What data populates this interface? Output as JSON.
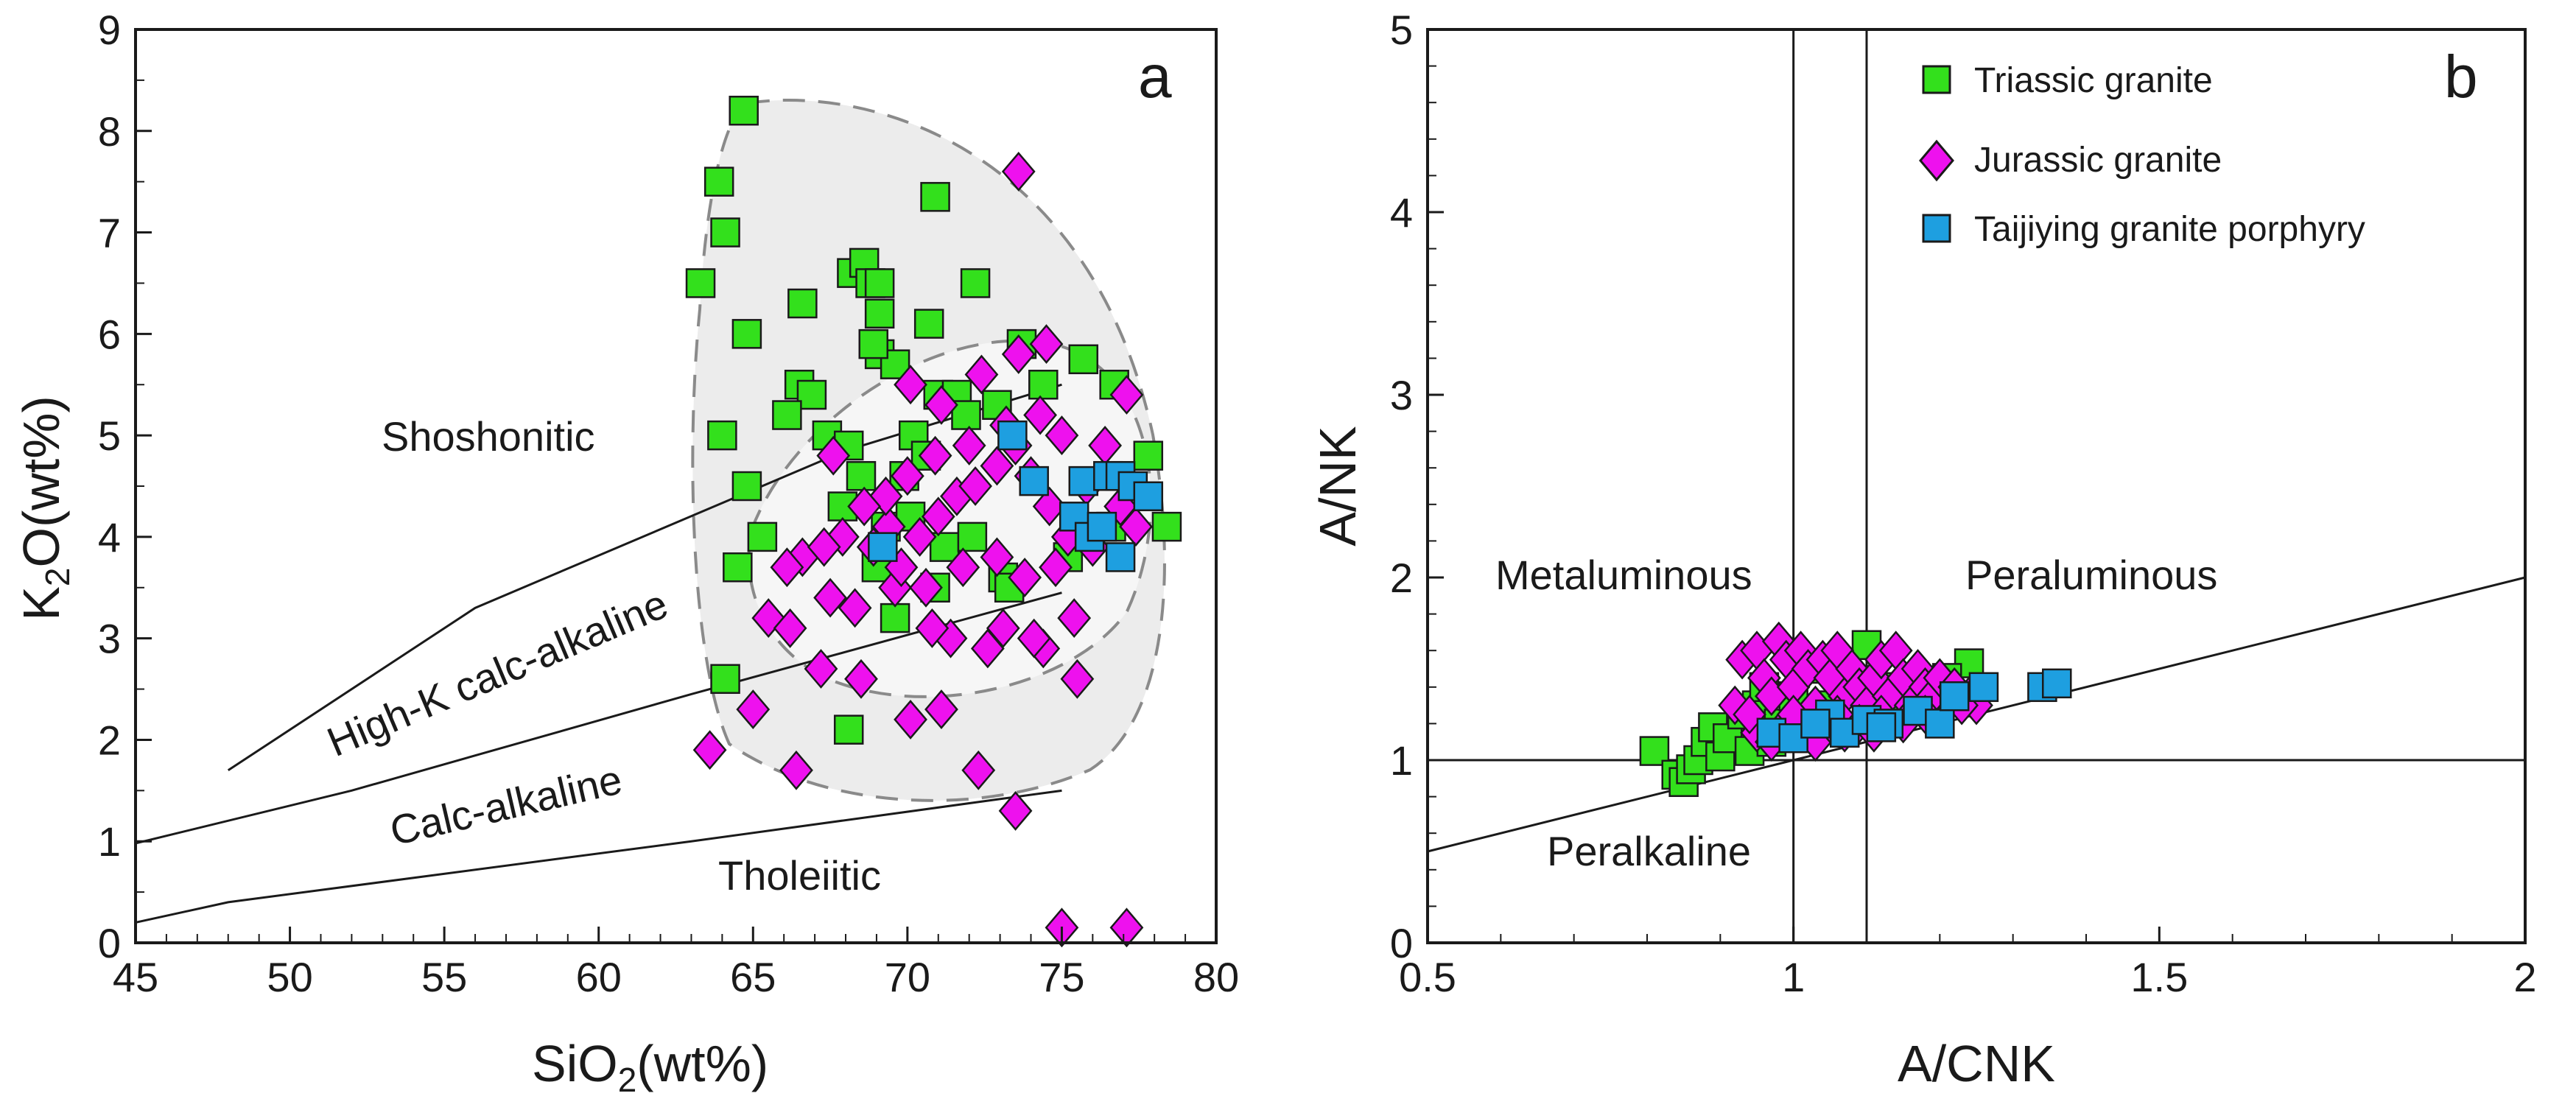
{
  "figure": {
    "panel_a": {
      "letter": "a",
      "x_title_main": "SiO",
      "x_title_sub": "2",
      "x_title_rest": "(wt%)",
      "y_title_main": "K",
      "y_title_sub": "2",
      "y_title_rest": "O(wt%)",
      "field_labels": {
        "shoshonitic": "Shoshonitic",
        "high_k": "High-K calc-alkaline",
        "calc_alkaline": "Calc-alkaline",
        "tholeiitic": "Tholeiitic"
      }
    },
    "panel_b": {
      "letter": "b",
      "x_title": "A/CNK",
      "y_title": "A/NK",
      "field_labels": {
        "metaluminous": "Metaluminous",
        "peraluminous": "Peraluminous",
        "peralkaline": "Peralkaline"
      }
    },
    "legend": [
      {
        "label": "Triassic granite",
        "marker": "square",
        "color": "#33e01c"
      },
      {
        "label": "Jurassic granite",
        "marker": "diamond",
        "color": "#ee11ee"
      },
      {
        "label": "Taijiying granite porphyry",
        "marker": "square",
        "color": "#1e9fe0"
      }
    ]
  },
  "chart_data": [
    {
      "type": "scatter",
      "title": "",
      "panel": "a",
      "xlabel": "SiO2(wt%)",
      "ylabel": "K2O(wt%)",
      "xlim": [
        45,
        80
      ],
      "ylim": [
        0,
        9
      ],
      "xticks": [
        45,
        50,
        55,
        60,
        65,
        70,
        75,
        80
      ],
      "yticks": [
        0,
        1,
        2,
        3,
        4,
        5,
        6,
        7,
        8,
        9
      ],
      "grid": false,
      "legend_position": "top-right of panel b",
      "boundaries": [
        {
          "name": "Shoshonitic / High-K calc-alkaline",
          "points": [
            [
              48,
              1.7
            ],
            [
              56,
              3.3
            ],
            [
              68,
              4.85
            ],
            [
              75,
              5.5
            ]
          ]
        },
        {
          "name": "High-K calc-alkaline / Calc-alkaline",
          "points": [
            [
              45,
              0.98
            ],
            [
              52,
              1.5
            ],
            [
              63,
              2.45
            ],
            [
              75,
              3.45
            ]
          ]
        },
        {
          "name": "Calc-alkaline / Tholeiitic",
          "points": [
            [
              45,
              0.2
            ],
            [
              48,
              0.4
            ],
            [
              63,
              1.0
            ],
            [
              75,
              1.5
            ]
          ]
        }
      ],
      "series": [
        {
          "name": "Triassic granite",
          "marker": "square",
          "color": "#33e01c",
          "points": [
            [
              64.7,
              8.2
            ],
            [
              63.9,
              7.5
            ],
            [
              64.1,
              7.0
            ],
            [
              63.3,
              6.5
            ],
            [
              64.8,
              6.0
            ],
            [
              66.6,
              6.3
            ],
            [
              68.2,
              6.6
            ],
            [
              68.6,
              6.7
            ],
            [
              68.8,
              6.5
            ],
            [
              69.1,
              6.5
            ],
            [
              70.9,
              7.35
            ],
            [
              72.2,
              6.5
            ],
            [
              70.7,
              6.1
            ],
            [
              69.1,
              6.2
            ],
            [
              69.1,
              5.8
            ],
            [
              69.6,
              5.7
            ],
            [
              68.9,
              5.9
            ],
            [
              66.5,
              5.5
            ],
            [
              66.9,
              5.4
            ],
            [
              66.1,
              5.2
            ],
            [
              64.0,
              5.0
            ],
            [
              64.8,
              4.5
            ],
            [
              65.3,
              4.0
            ],
            [
              64.5,
              3.7
            ],
            [
              64.1,
              2.6
            ],
            [
              67.4,
              5.0
            ],
            [
              68.1,
              4.9
            ],
            [
              68.5,
              4.6
            ],
            [
              67.9,
              4.3
            ],
            [
              69.3,
              4.1
            ],
            [
              70.2,
              5.0
            ],
            [
              71.0,
              5.4
            ],
            [
              71.6,
              5.4
            ],
            [
              71.9,
              5.2
            ],
            [
              72.9,
              5.3
            ],
            [
              73.7,
              5.9
            ],
            [
              75.7,
              5.75
            ],
            [
              74.4,
              5.5
            ],
            [
              76.7,
              5.5
            ],
            [
              77.8,
              4.8
            ],
            [
              78.4,
              4.1
            ],
            [
              68.1,
              2.1
            ],
            [
              69.6,
              3.2
            ],
            [
              70.9,
              3.5
            ],
            [
              73.1,
              3.6
            ],
            [
              73.3,
              3.5
            ],
            [
              75.2,
              3.8
            ],
            [
              76.6,
              4.1
            ],
            [
              70.1,
              4.2
            ],
            [
              71.2,
              3.9
            ],
            [
              72.1,
              4.0
            ],
            [
              69.9,
              4.6
            ],
            [
              70.6,
              4.8
            ],
            [
              69.0,
              3.7
            ]
          ]
        },
        {
          "name": "Jurassic granite",
          "marker": "diamond",
          "color": "#ee11ee",
          "points": [
            [
              73.6,
              7.6
            ],
            [
              73.6,
              5.8
            ],
            [
              74.5,
              5.9
            ],
            [
              72.4,
              5.6
            ],
            [
              70.1,
              5.5
            ],
            [
              71.1,
              5.3
            ],
            [
              77.1,
              5.4
            ],
            [
              67.6,
              4.8
            ],
            [
              66.6,
              3.8
            ],
            [
              66.1,
              3.7
            ],
            [
              65.5,
              3.2
            ],
            [
              66.2,
              3.1
            ],
            [
              65.0,
              2.3
            ],
            [
              63.6,
              1.9
            ],
            [
              66.4,
              1.7
            ],
            [
              67.2,
              2.7
            ],
            [
              68.5,
              2.6
            ],
            [
              70.1,
              2.2
            ],
            [
              71.1,
              2.3
            ],
            [
              72.3,
              1.7
            ],
            [
              73.5,
              1.3
            ],
            [
              74.4,
              2.9
            ],
            [
              75.5,
              2.6
            ],
            [
              74.1,
              3.0
            ],
            [
              75.4,
              3.2
            ],
            [
              73.1,
              3.1
            ],
            [
              71.4,
              3.0
            ],
            [
              72.6,
              2.9
            ],
            [
              70.8,
              3.1
            ],
            [
              69.6,
              3.5
            ],
            [
              68.3,
              3.3
            ],
            [
              67.5,
              3.4
            ],
            [
              68.9,
              3.9
            ],
            [
              69.4,
              4.1
            ],
            [
              70.4,
              4.0
            ],
            [
              71.0,
              4.2
            ],
            [
              71.6,
              4.4
            ],
            [
              72.2,
              4.5
            ],
            [
              72.9,
              4.7
            ],
            [
              73.5,
              4.9
            ],
            [
              74.0,
              4.6
            ],
            [
              74.6,
              4.3
            ],
            [
              75.2,
              4.0
            ],
            [
              75.8,
              4.5
            ],
            [
              76.4,
              4.9
            ],
            [
              76.9,
              4.3
            ],
            [
              77.4,
              4.1
            ],
            [
              75.0,
              5.0
            ],
            [
              74.3,
              5.2
            ],
            [
              73.2,
              5.1
            ],
            [
              72.0,
              4.9
            ],
            [
              70.9,
              4.8
            ],
            [
              70.0,
              4.6
            ],
            [
              69.3,
              4.4
            ],
            [
              68.6,
              4.3
            ],
            [
              67.9,
              4.0
            ],
            [
              67.3,
              3.9
            ],
            [
              71.8,
              3.7
            ],
            [
              72.9,
              3.8
            ],
            [
              73.8,
              3.6
            ],
            [
              74.8,
              3.7
            ],
            [
              76.0,
              3.9
            ],
            [
              69.8,
              3.7
            ],
            [
              70.6,
              3.5
            ],
            [
              75.0,
              0.15
            ],
            [
              77.1,
              0.15
            ]
          ]
        },
        {
          "name": "Taijiying granite porphyry",
          "marker": "square",
          "color": "#1e9fe0",
          "points": [
            [
              73.4,
              5.0
            ],
            [
              74.1,
              4.55
            ],
            [
              75.7,
              4.55
            ],
            [
              75.4,
              4.2
            ],
            [
              75.9,
              4.0
            ],
            [
              76.5,
              4.6
            ],
            [
              76.9,
              4.6
            ],
            [
              77.3,
              4.5
            ],
            [
              77.8,
              4.4
            ],
            [
              76.3,
              4.1
            ],
            [
              76.9,
              3.8
            ],
            [
              69.2,
              3.9
            ]
          ]
        }
      ]
    },
    {
      "type": "scatter",
      "title": "",
      "panel": "b",
      "xlabel": "A/CNK",
      "ylabel": "A/NK",
      "xlim": [
        0.5,
        2
      ],
      "ylim": [
        0,
        5
      ],
      "xticks": [
        0.5,
        1,
        1.5,
        2
      ],
      "yticks": [
        0,
        1,
        2,
        3,
        4,
        5
      ],
      "grid": false,
      "legend_position": "top-right",
      "reference_lines": [
        {
          "type": "vertical",
          "x": 1.0
        },
        {
          "type": "vertical",
          "x": 1.1
        },
        {
          "type": "horizontal",
          "y": 1.0
        },
        {
          "type": "line",
          "points": [
            [
              0.5,
              0.5
            ],
            [
              2.0,
              2.0
            ]
          ]
        }
      ],
      "series": [
        {
          "name": "Triassic granite",
          "marker": "square",
          "color": "#33e01c",
          "points": [
            [
              0.81,
              1.05
            ],
            [
              0.84,
              0.92
            ],
            [
              0.85,
              0.88
            ],
            [
              0.86,
              0.95
            ],
            [
              0.87,
              1.0
            ],
            [
              0.88,
              1.1
            ],
            [
              0.89,
              1.18
            ],
            [
              0.9,
              1.02
            ],
            [
              0.91,
              1.12
            ],
            [
              0.93,
              1.25
            ],
            [
              0.95,
              1.3
            ],
            [
              0.96,
              1.4
            ],
            [
              0.98,
              1.2
            ],
            [
              1.0,
              1.35
            ],
            [
              1.02,
              1.5
            ],
            [
              1.05,
              1.3
            ],
            [
              1.1,
              1.63
            ],
            [
              1.13,
              1.4
            ],
            [
              1.18,
              1.3
            ],
            [
              1.24,
              1.53
            ],
            [
              1.21,
              1.45
            ],
            [
              1.15,
              1.35
            ],
            [
              0.94,
              1.05
            ],
            [
              0.97,
              1.1
            ]
          ]
        },
        {
          "name": "Jurassic granite",
          "marker": "diamond",
          "color": "#ee11ee",
          "points": [
            [
              0.92,
              1.3
            ],
            [
              0.93,
              1.55
            ],
            [
              0.95,
              1.6
            ],
            [
              0.96,
              1.45
            ],
            [
              0.97,
              1.35
            ],
            [
              0.98,
              1.65
            ],
            [
              0.99,
              1.55
            ],
            [
              1.0,
              1.4
            ],
            [
              1.01,
              1.6
            ],
            [
              1.02,
              1.5
            ],
            [
              1.03,
              1.3
            ],
            [
              1.04,
              1.55
            ],
            [
              1.05,
              1.45
            ],
            [
              1.06,
              1.6
            ],
            [
              1.07,
              1.35
            ],
            [
              1.08,
              1.5
            ],
            [
              1.09,
              1.4
            ],
            [
              1.1,
              1.3
            ],
            [
              1.11,
              1.45
            ],
            [
              1.12,
              1.55
            ],
            [
              1.13,
              1.35
            ],
            [
              1.14,
              1.6
            ],
            [
              1.15,
              1.45
            ],
            [
              1.16,
              1.3
            ],
            [
              1.17,
              1.5
            ],
            [
              1.18,
              1.4
            ],
            [
              1.19,
              1.35
            ],
            [
              1.2,
              1.45
            ],
            [
              1.22,
              1.4
            ],
            [
              1.24,
              1.35
            ],
            [
              1.25,
              1.3
            ],
            [
              0.95,
              1.15
            ],
            [
              0.97,
              1.1
            ],
            [
              0.99,
              1.2
            ],
            [
              1.01,
              1.15
            ],
            [
              1.03,
              1.1
            ],
            [
              1.05,
              1.2
            ],
            [
              1.07,
              1.15
            ],
            [
              1.09,
              1.2
            ],
            [
              1.11,
              1.15
            ],
            [
              0.94,
              1.25
            ],
            [
              1.0,
              1.25
            ],
            [
              1.06,
              1.25
            ],
            [
              1.12,
              1.25
            ],
            [
              1.18,
              1.25
            ],
            [
              1.23,
              1.3
            ],
            [
              1.15,
              1.2
            ]
          ]
        },
        {
          "name": "Taijiying granite porphyry",
          "marker": "square",
          "color": "#1e9fe0",
          "points": [
            [
              0.97,
              1.15
            ],
            [
              1.0,
              1.12
            ],
            [
              1.05,
              1.25
            ],
            [
              1.07,
              1.15
            ],
            [
              1.1,
              1.22
            ],
            [
              1.13,
              1.2
            ],
            [
              1.17,
              1.27
            ],
            [
              1.2,
              1.2
            ],
            [
              1.22,
              1.35
            ],
            [
              1.26,
              1.4
            ],
            [
              1.34,
              1.4
            ],
            [
              1.36,
              1.42
            ],
            [
              1.12,
              1.18
            ],
            [
              1.03,
              1.2
            ]
          ]
        }
      ]
    }
  ]
}
